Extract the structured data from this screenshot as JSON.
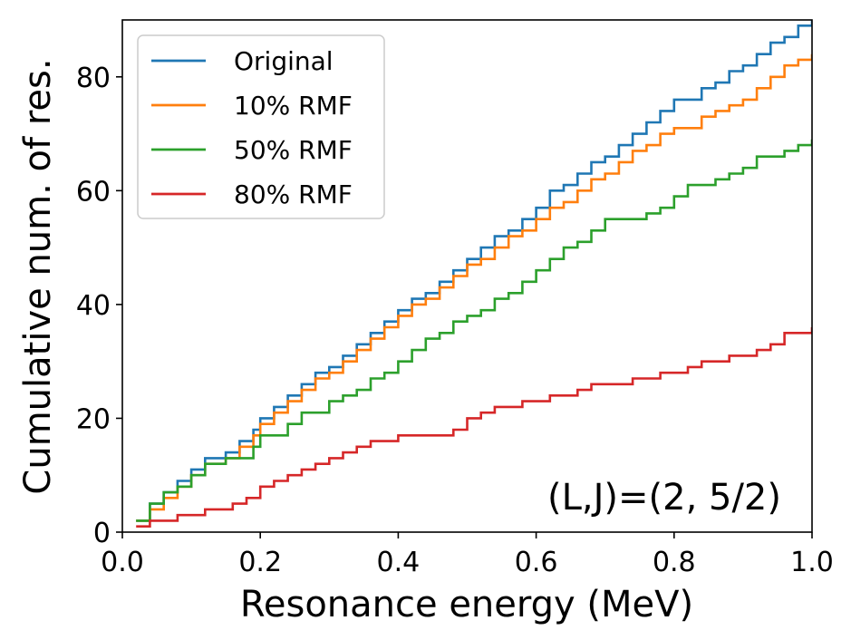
{
  "chart_data": {
    "type": "line",
    "title": "",
    "xlabel": "Resonance energy (MeV)",
    "ylabel": "Cumulative num. of res.",
    "xlim": [
      0.0,
      1.0
    ],
    "ylim": [
      0,
      90
    ],
    "xticks": [
      0.0,
      0.2,
      0.4,
      0.6,
      0.8,
      1.0
    ],
    "xtick_labels": [
      "0.0",
      "0.2",
      "0.4",
      "0.6",
      "0.8",
      "1.0"
    ],
    "yticks": [
      0,
      20,
      40,
      60,
      80
    ],
    "ytick_labels": [
      "0",
      "20",
      "40",
      "60",
      "80"
    ],
    "grid": false,
    "legend_position": "top-left",
    "annotation": "(L,J)=(2, 5/2)",
    "step": true,
    "series": [
      {
        "name": "Original",
        "color": "#1f77b4",
        "x": [
          0.02,
          0.04,
          0.06,
          0.08,
          0.1,
          0.12,
          0.15,
          0.17,
          0.19,
          0.2,
          0.22,
          0.24,
          0.26,
          0.28,
          0.3,
          0.32,
          0.34,
          0.36,
          0.38,
          0.4,
          0.42,
          0.44,
          0.46,
          0.48,
          0.5,
          0.52,
          0.54,
          0.56,
          0.58,
          0.6,
          0.62,
          0.64,
          0.66,
          0.68,
          0.7,
          0.72,
          0.74,
          0.76,
          0.78,
          0.8,
          0.82,
          0.84,
          0.86,
          0.88,
          0.9,
          0.92,
          0.94,
          0.96,
          0.98,
          1.0
        ],
        "y": [
          2,
          5,
          7,
          9,
          11,
          13,
          14,
          16,
          18,
          20,
          22,
          24,
          26,
          28,
          29,
          31,
          33,
          35,
          37,
          39,
          41,
          42,
          44,
          46,
          48,
          50,
          52,
          53,
          55,
          57,
          60,
          61,
          63,
          65,
          66,
          68,
          70,
          72,
          74,
          76,
          76,
          78,
          79,
          81,
          82,
          84,
          86,
          87,
          89,
          90
        ]
      },
      {
        "name": "10% RMF",
        "color": "#ff7f0e",
        "x": [
          0.02,
          0.04,
          0.06,
          0.08,
          0.1,
          0.12,
          0.15,
          0.17,
          0.19,
          0.2,
          0.22,
          0.24,
          0.26,
          0.28,
          0.3,
          0.32,
          0.34,
          0.36,
          0.38,
          0.4,
          0.42,
          0.44,
          0.46,
          0.48,
          0.5,
          0.52,
          0.54,
          0.56,
          0.58,
          0.6,
          0.62,
          0.64,
          0.66,
          0.68,
          0.7,
          0.72,
          0.74,
          0.76,
          0.78,
          0.8,
          0.82,
          0.84,
          0.86,
          0.88,
          0.9,
          0.92,
          0.94,
          0.96,
          0.98,
          1.0
        ],
        "y": [
          2,
          4,
          6,
          8,
          10,
          12,
          13,
          15,
          17,
          19,
          21,
          23,
          25,
          27,
          28,
          30,
          32,
          34,
          36,
          38,
          40,
          41,
          43,
          45,
          47,
          48,
          50,
          52,
          53,
          55,
          57,
          58,
          60,
          62,
          63,
          65,
          67,
          68,
          70,
          71,
          71,
          73,
          74,
          75,
          76,
          78,
          80,
          82,
          83,
          84
        ]
      },
      {
        "name": "50% RMF",
        "color": "#2ca02c",
        "x": [
          0.02,
          0.04,
          0.06,
          0.08,
          0.1,
          0.12,
          0.15,
          0.17,
          0.19,
          0.2,
          0.22,
          0.24,
          0.26,
          0.28,
          0.3,
          0.32,
          0.34,
          0.36,
          0.38,
          0.4,
          0.42,
          0.44,
          0.46,
          0.48,
          0.5,
          0.52,
          0.54,
          0.56,
          0.58,
          0.6,
          0.62,
          0.64,
          0.66,
          0.68,
          0.7,
          0.72,
          0.74,
          0.76,
          0.78,
          0.8,
          0.82,
          0.84,
          0.86,
          0.88,
          0.9,
          0.92,
          0.94,
          0.96,
          0.98,
          1.0
        ],
        "y": [
          2,
          5,
          7,
          8,
          10,
          12,
          13,
          13,
          15,
          17,
          17,
          19,
          21,
          21,
          23,
          24,
          25,
          27,
          28,
          30,
          32,
          34,
          35,
          37,
          38,
          39,
          41,
          42,
          44,
          46,
          48,
          50,
          51,
          53,
          55,
          55,
          55,
          56,
          57,
          59,
          61,
          61,
          62,
          63,
          64,
          66,
          66,
          67,
          68,
          69
        ]
      },
      {
        "name": "80% RMF",
        "color": "#d62728",
        "x": [
          0.02,
          0.04,
          0.08,
          0.12,
          0.16,
          0.18,
          0.2,
          0.22,
          0.24,
          0.26,
          0.28,
          0.3,
          0.32,
          0.34,
          0.36,
          0.38,
          0.4,
          0.44,
          0.48,
          0.5,
          0.52,
          0.54,
          0.56,
          0.58,
          0.6,
          0.62,
          0.64,
          0.66,
          0.68,
          0.7,
          0.74,
          0.78,
          0.82,
          0.84,
          0.88,
          0.92,
          0.94,
          0.96,
          1.0
        ],
        "y": [
          1,
          2,
          3,
          4,
          5,
          6,
          8,
          9,
          10,
          11,
          12,
          13,
          14,
          15,
          16,
          16,
          17,
          17,
          18,
          20,
          21,
          22,
          22,
          23,
          23,
          24,
          24,
          25,
          26,
          26,
          27,
          28,
          29,
          30,
          31,
          32,
          33,
          35,
          36
        ]
      }
    ]
  }
}
